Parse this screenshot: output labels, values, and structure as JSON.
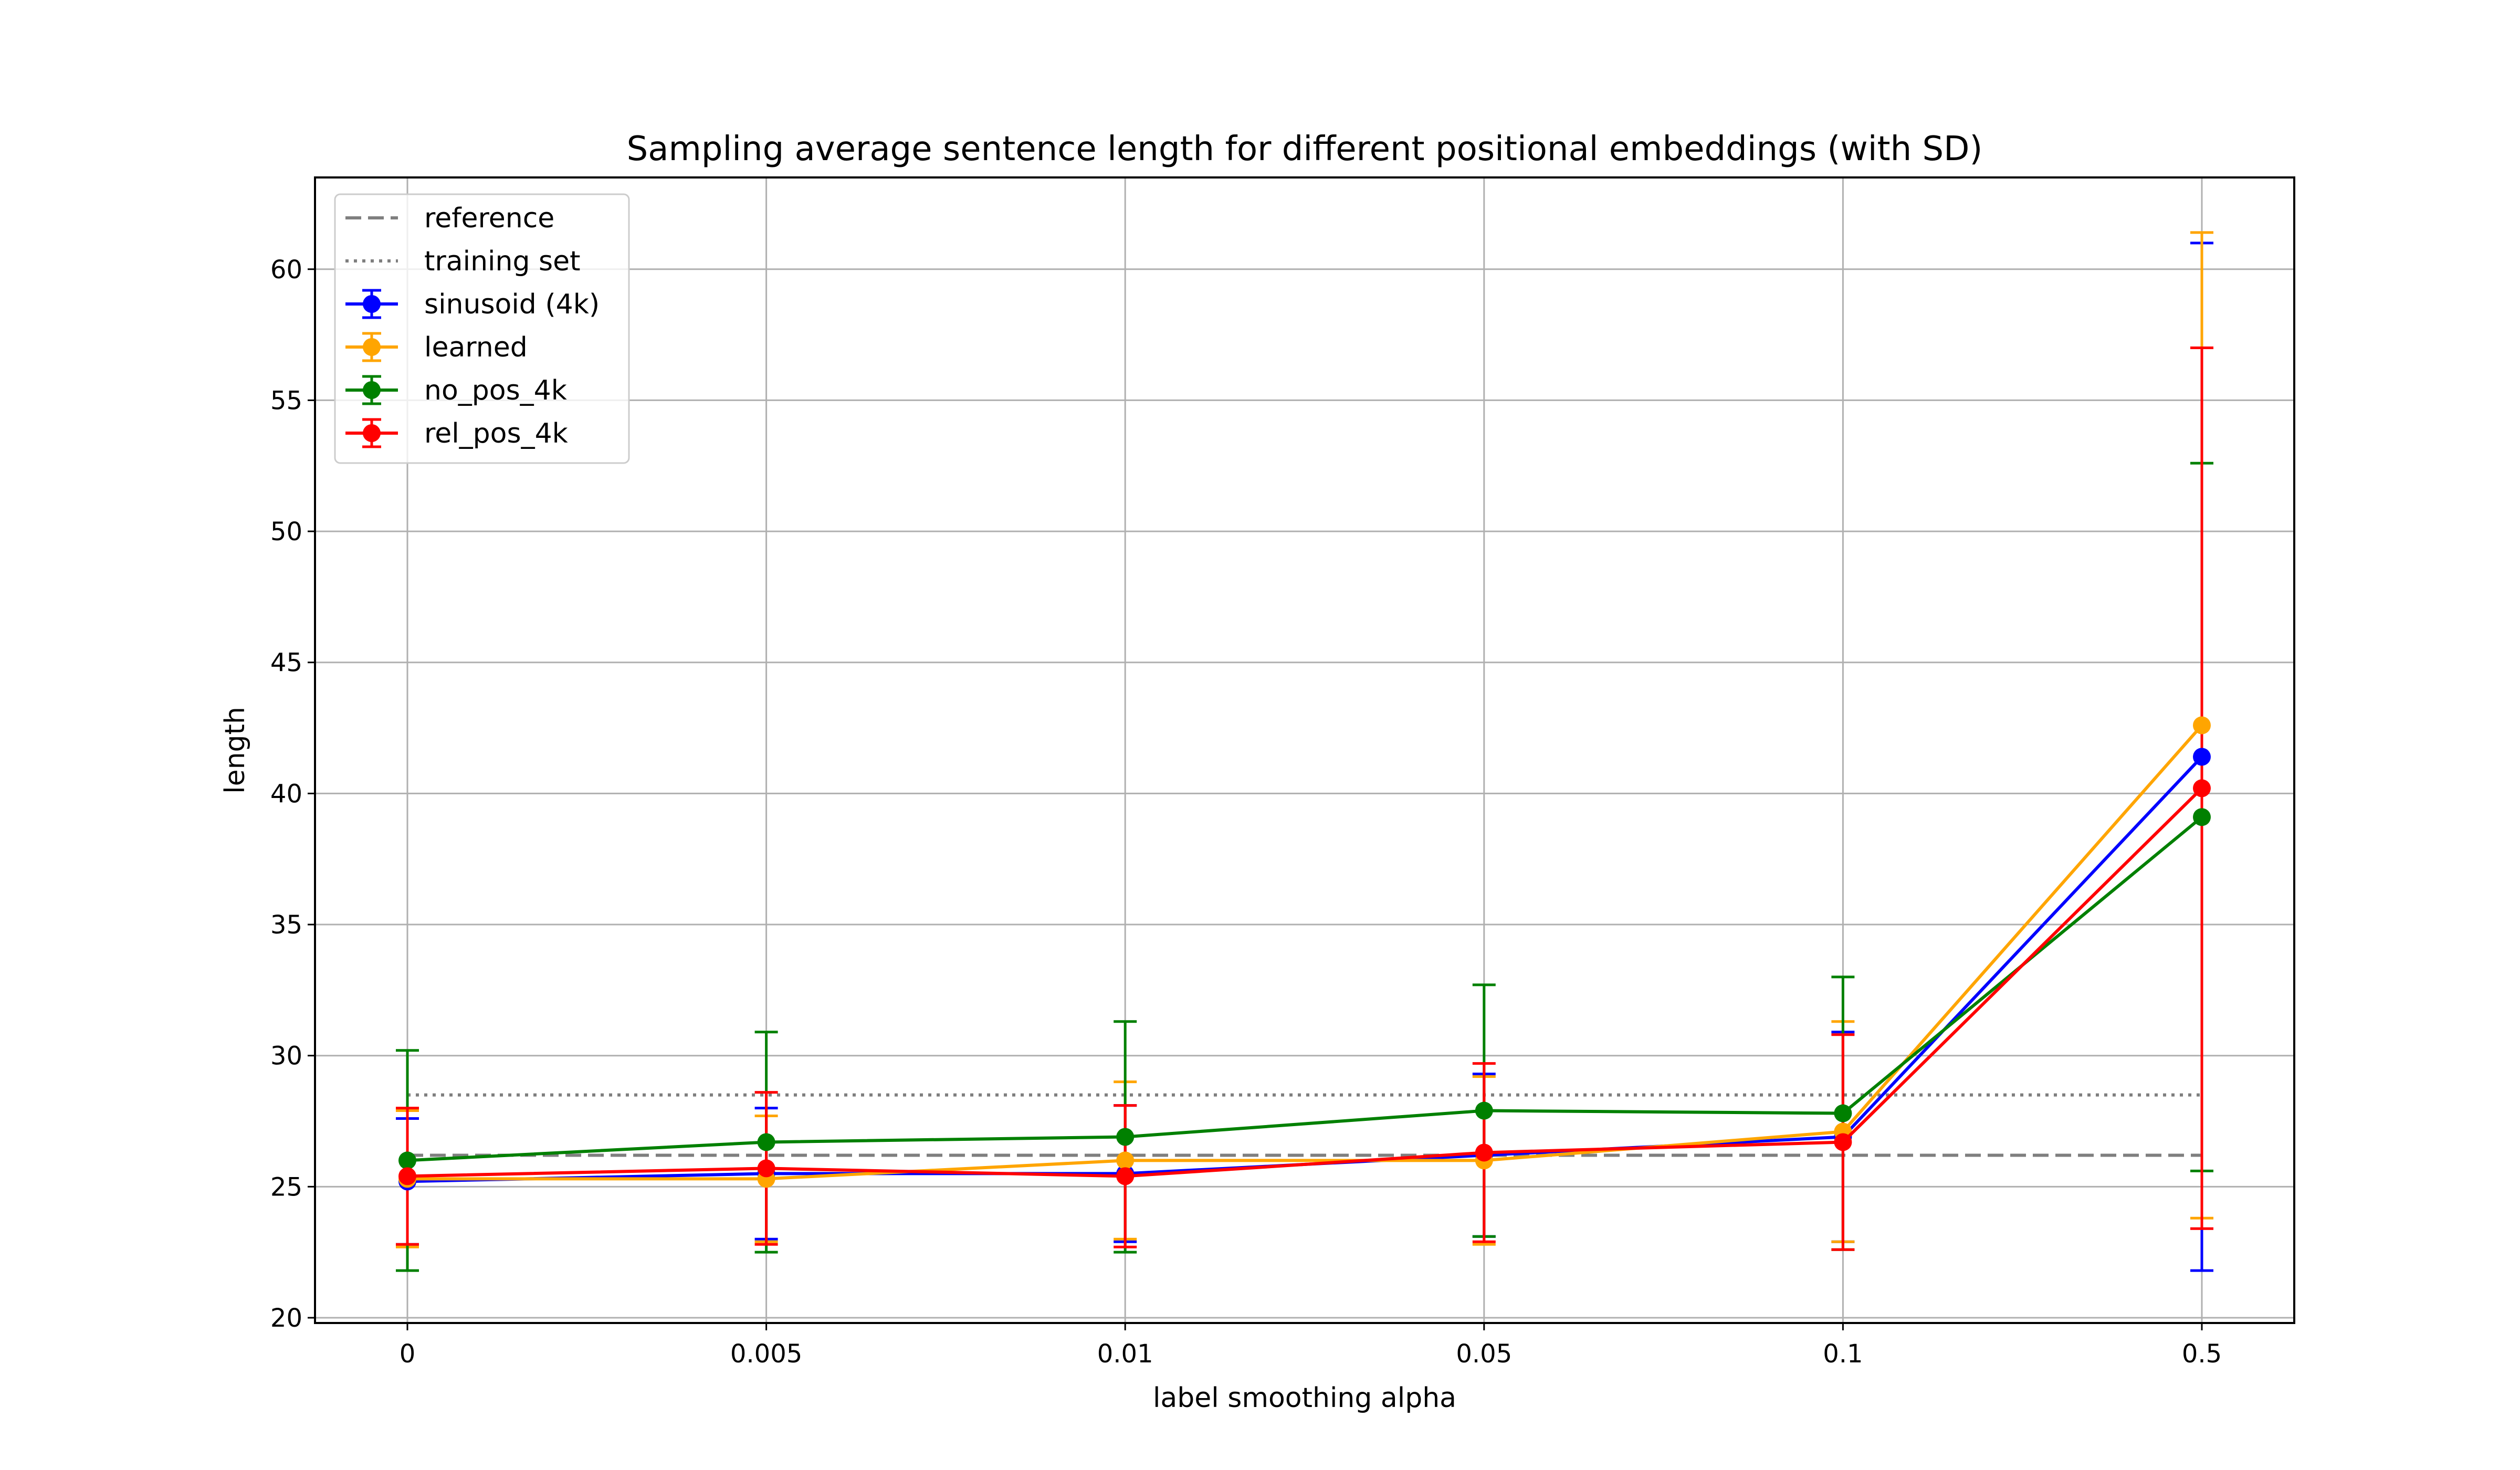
{
  "chart_data": {
    "type": "line",
    "title": "Sampling average sentence length for different positional embeddings (with SD)",
    "xlabel": "label smoothing alpha",
    "ylabel": "length",
    "categories": [
      "0",
      "0.005",
      "0.01",
      "0.05",
      "0.1",
      "0.5"
    ],
    "ylim": [
      19.8,
      63.5
    ],
    "yticks": [
      20,
      25,
      30,
      35,
      40,
      45,
      50,
      55,
      60
    ],
    "grid": true,
    "legend": "top-left",
    "reference_lines": [
      {
        "name": "reference",
        "value": 26.2,
        "style": "dashed",
        "color": "#7f7f7f"
      },
      {
        "name": "training set",
        "value": 28.5,
        "style": "dotted",
        "color": "#7f7f7f"
      }
    ],
    "series": [
      {
        "name": "sinusoid (4k)",
        "color": "#0000ff",
        "values": [
          25.2,
          25.5,
          25.5,
          26.2,
          26.9,
          41.4
        ],
        "sd": [
          2.4,
          2.5,
          2.6,
          3.1,
          4.0,
          19.6
        ]
      },
      {
        "name": "learned",
        "color": "#ffa500",
        "values": [
          25.3,
          25.3,
          26.0,
          26.0,
          27.1,
          42.6
        ],
        "sd": [
          2.6,
          2.4,
          3.0,
          3.2,
          4.2,
          18.8
        ]
      },
      {
        "name": "no_pos_4k",
        "color": "#008000",
        "values": [
          26.0,
          26.7,
          26.9,
          27.9,
          27.8,
          39.1
        ],
        "sd": [
          4.2,
          4.2,
          4.4,
          4.8,
          5.2,
          13.5
        ]
      },
      {
        "name": "rel_pos_4k",
        "color": "#ff0000",
        "values": [
          25.4,
          25.7,
          25.4,
          26.3,
          26.7,
          40.2
        ],
        "sd": [
          2.6,
          2.9,
          2.7,
          3.4,
          4.1,
          16.8
        ]
      }
    ]
  }
}
